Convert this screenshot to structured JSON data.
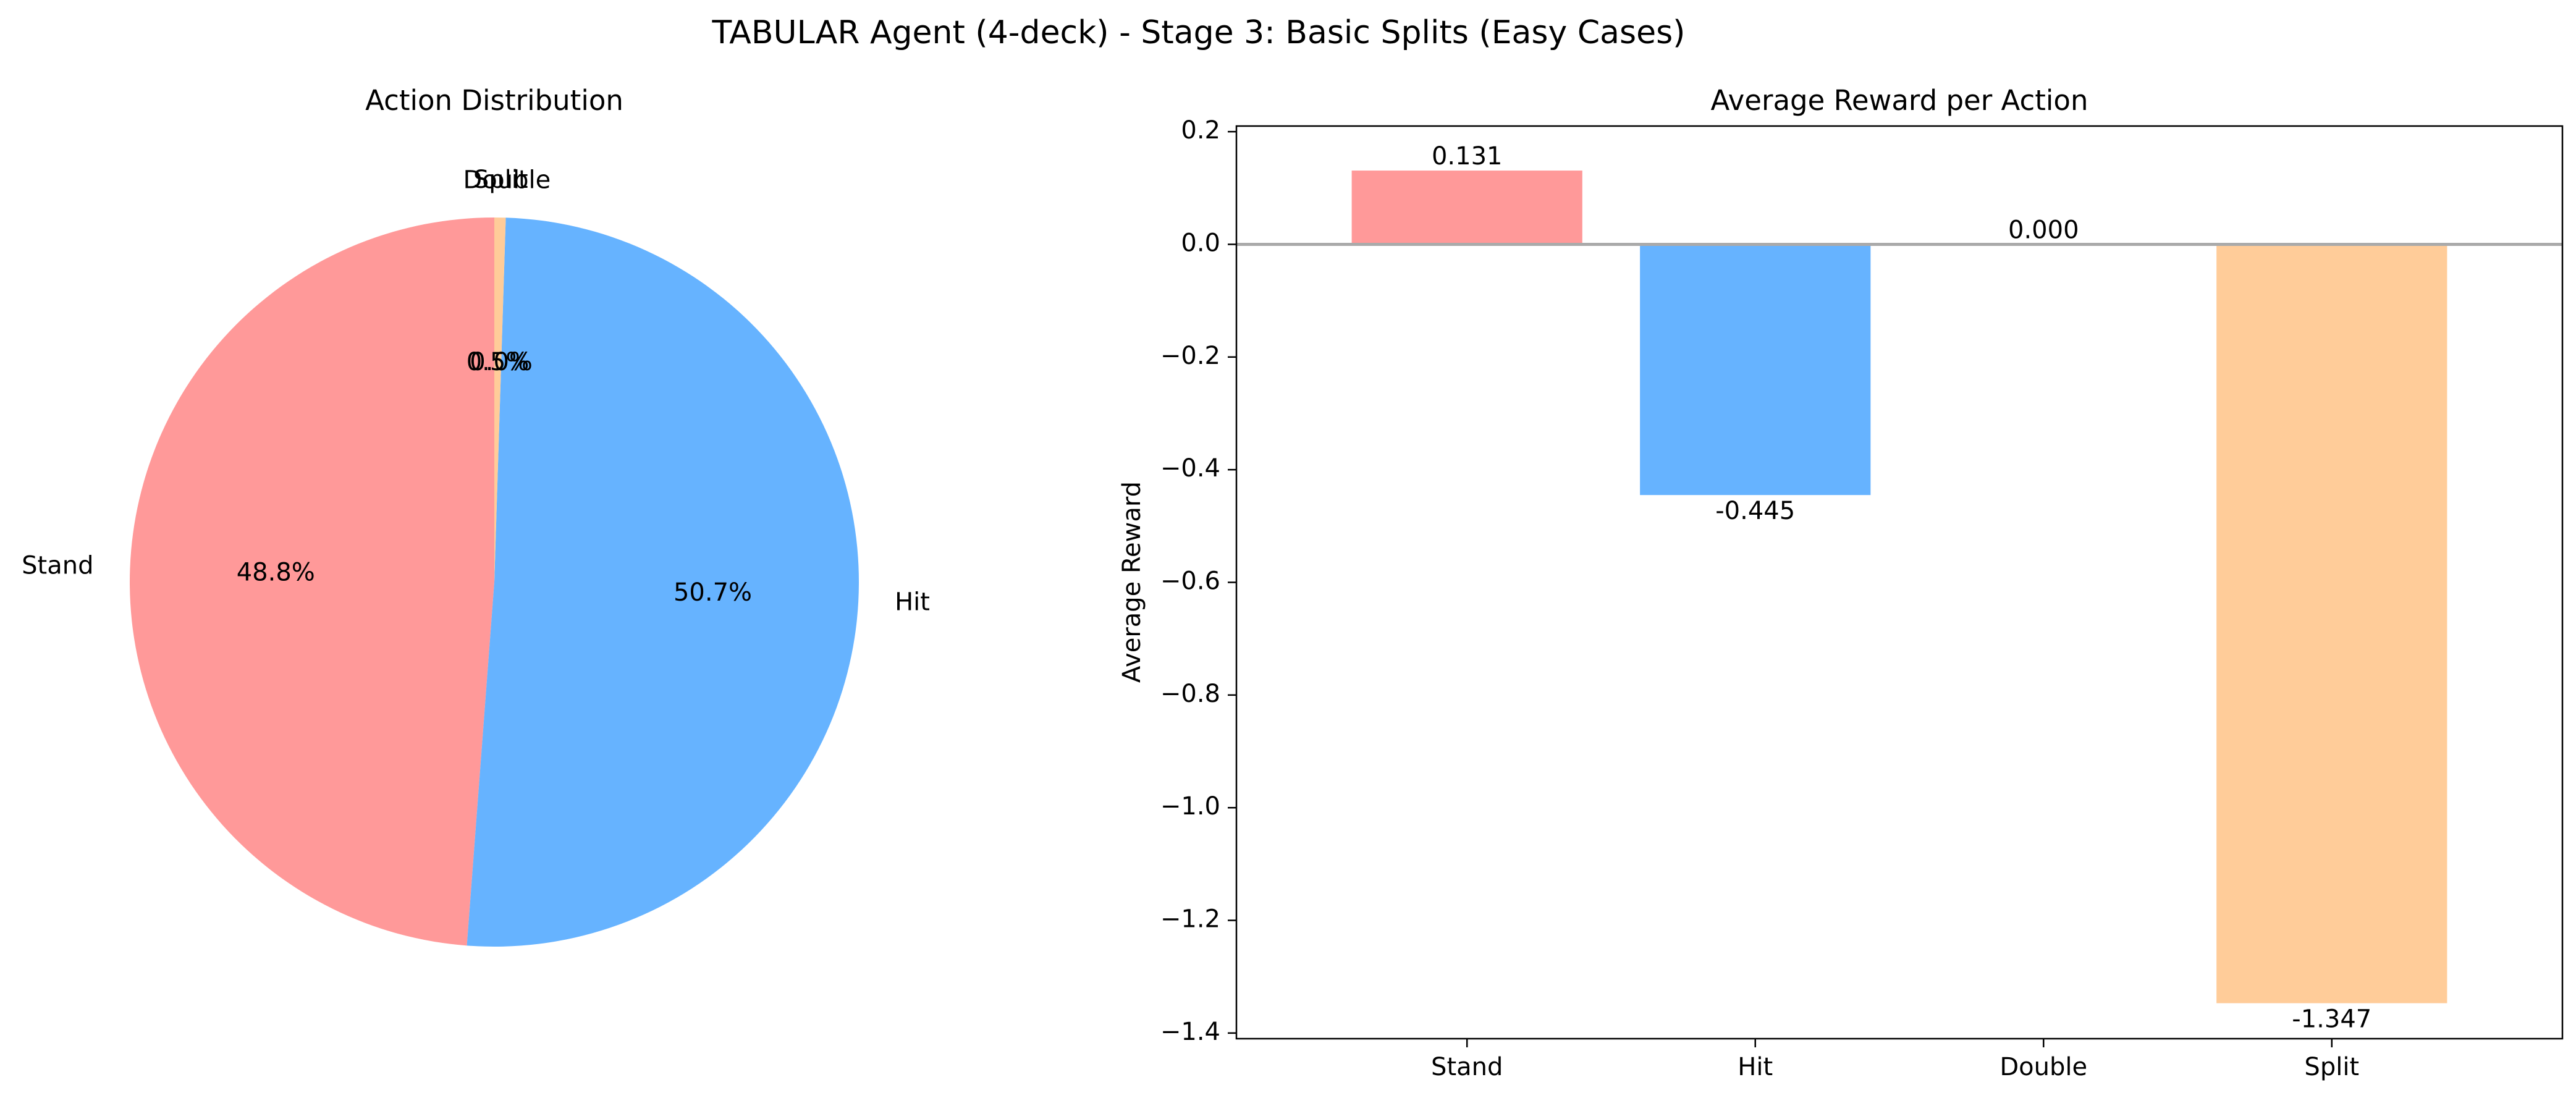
{
  "figure": {
    "suptitle": "TABULAR Agent (4-deck) - Stage 3: Basic Splits (Easy Cases)"
  },
  "colors": {
    "Stand": "#ff9999",
    "Hit": "#66b3ff",
    "Double": "#99ff99",
    "Split": "#ffcc99",
    "zero_line": "#aaaaaa"
  },
  "chart_data": [
    {
      "type": "pie",
      "title": "Action Distribution",
      "labels": [
        "Stand",
        "Hit",
        "Double",
        "Split"
      ],
      "values": [
        48.8,
        50.7,
        0.0,
        0.5
      ],
      "autopct_labels": [
        "48.8%",
        "50.7%",
        "0.0%",
        "0.5%"
      ],
      "start_angle_deg": 90,
      "direction": "counterclockwise"
    },
    {
      "type": "bar",
      "title": "Average Reward per Action",
      "categories": [
        "Stand",
        "Hit",
        "Double",
        "Split"
      ],
      "values": [
        0.131,
        -0.445,
        0.0,
        -1.347
      ],
      "value_labels": [
        "0.131",
        "-0.445",
        "0.000",
        "-1.347"
      ],
      "xlabel": "",
      "ylabel": "Average Reward",
      "ylim": [
        -1.41,
        0.21
      ],
      "yticks": [
        0.2,
        0.0,
        -0.2,
        -0.4,
        -0.6,
        -0.8,
        -1.0,
        -1.2,
        -1.4
      ],
      "ytick_labels": [
        "0.2",
        "0.0",
        "−0.2",
        "−0.4",
        "−0.6",
        "−0.8",
        "−1.0",
        "−1.2",
        "−1.4"
      ],
      "grid": false,
      "zero_line": true
    }
  ]
}
